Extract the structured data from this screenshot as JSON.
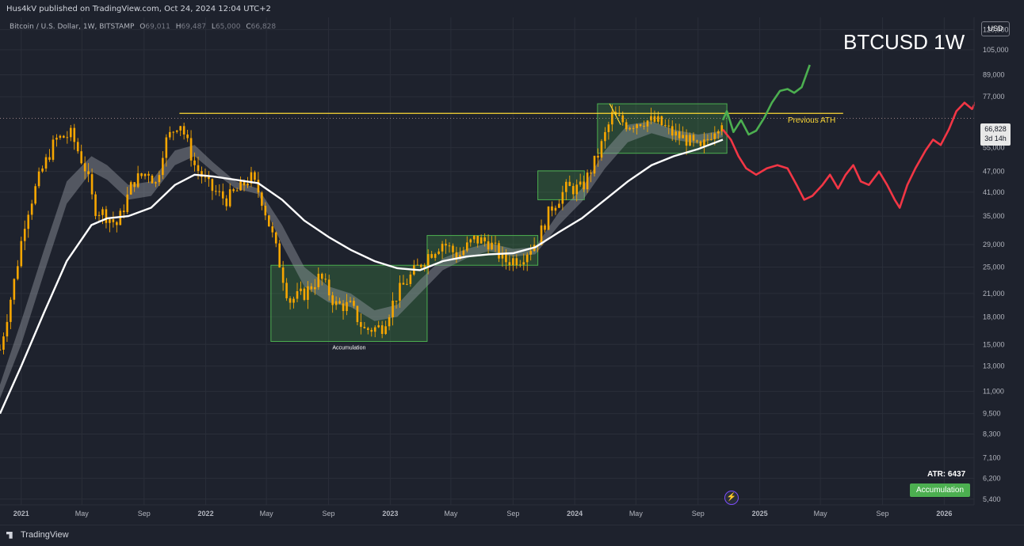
{
  "header": {
    "published_by": "Hus4kV published on TradingView.com, Oct 24, 2024 12:04 UTC+2"
  },
  "legend": {
    "symbol": "Bitcoin / U.S. Dollar, 1W, BITSTAMP",
    "open_label": "O",
    "open": "69,011",
    "high_label": "H",
    "high": "69,487",
    "low_label": "L",
    "low": "65,000",
    "close_label": "C",
    "close": "66,828"
  },
  "title": "BTCUSD 1W",
  "currency": "USD",
  "price_tag": {
    "price": "66,828",
    "countdown": "3d 14h"
  },
  "atr_text": "ATR: 6437",
  "badge": "Accumulation",
  "footer": {
    "logo": "TradingView"
  },
  "colors": {
    "background": "#1e222d",
    "candle": "#f7a600",
    "ma_white": "#ffffff",
    "band": "#9598a1",
    "box_fill": "#4caf50",
    "ath_line": "#fdd835",
    "bull_path": "#4caf50",
    "bear_path": "#f23645"
  },
  "chart_data": {
    "type": "line",
    "scale": "log",
    "ylim": [
      5200,
      130000
    ],
    "xlim": [
      "2020-11-20",
      "2026-03-01"
    ],
    "y_ticks": [
      "120,000",
      "105,000",
      "89,000",
      "77,000",
      "66,828",
      "55,000",
      "47,000",
      "41,000",
      "35,000",
      "29,000",
      "25,000",
      "21,000",
      "18,000",
      "15,000",
      "13,000",
      "11,000",
      "9,500",
      "8,300",
      "7,100",
      "6,200",
      "5,400"
    ],
    "y_tick_values": [
      120000,
      105000,
      89000,
      77000,
      66828,
      55000,
      47000,
      41000,
      35000,
      29000,
      25000,
      21000,
      18000,
      15000,
      13000,
      11000,
      9500,
      8300,
      7100,
      6200,
      5400
    ],
    "x_ticks": [
      {
        "label": "2021",
        "date": "2021-01-01"
      },
      {
        "label": "May",
        "date": "2021-05-01"
      },
      {
        "label": "Sep",
        "date": "2021-09-01"
      },
      {
        "label": "2022",
        "date": "2022-01-01"
      },
      {
        "label": "May",
        "date": "2022-05-01"
      },
      {
        "label": "Sep",
        "date": "2022-09-01"
      },
      {
        "label": "2023",
        "date": "2023-01-01"
      },
      {
        "label": "May",
        "date": "2023-05-01"
      },
      {
        "label": "Sep",
        "date": "2023-09-01"
      },
      {
        "label": "2024",
        "date": "2024-01-01"
      },
      {
        "label": "May",
        "date": "2024-05-01"
      },
      {
        "label": "Sep",
        "date": "2024-09-01"
      },
      {
        "label": "2025",
        "date": "2025-01-01"
      },
      {
        "label": "May",
        "date": "2025-05-01"
      },
      {
        "label": "Sep",
        "date": "2025-09-01"
      },
      {
        "label": "2026",
        "date": "2026-01-01"
      }
    ],
    "price_weekly_close": [
      [
        "2020-11-20",
        14500
      ],
      [
        "2020-12-20",
        23500
      ],
      [
        "2021-01-10",
        35000
      ],
      [
        "2021-02-10",
        47000
      ],
      [
        "2021-03-10",
        58000
      ],
      [
        "2021-04-10",
        60000
      ],
      [
        "2021-05-10",
        47000
      ],
      [
        "2021-05-25",
        37000
      ],
      [
        "2021-06-15",
        35500
      ],
      [
        "2021-07-10",
        33000
      ],
      [
        "2021-08-10",
        44000
      ],
      [
        "2021-09-10",
        47000
      ],
      [
        "2021-09-25",
        43000
      ],
      [
        "2021-10-10",
        56000
      ],
      [
        "2021-11-10",
        66000
      ],
      [
        "2021-12-10",
        49000
      ],
      [
        "2022-01-10",
        42000
      ],
      [
        "2022-02-10",
        39000
      ],
      [
        "2022-03-10",
        42000
      ],
      [
        "2022-03-30",
        45500
      ],
      [
        "2022-04-20",
        40000
      ],
      [
        "2022-05-15",
        30000
      ],
      [
        "2022-06-15",
        20000
      ],
      [
        "2022-07-15",
        21000
      ],
      [
        "2022-08-15",
        23500
      ],
      [
        "2022-09-15",
        19500
      ],
      [
        "2022-10-15",
        19300
      ],
      [
        "2022-11-10",
        16500
      ],
      [
        "2022-12-15",
        16800
      ],
      [
        "2023-01-15",
        21000
      ],
      [
        "2023-02-15",
        24000
      ],
      [
        "2023-03-15",
        27000
      ],
      [
        "2023-04-15",
        29500
      ],
      [
        "2023-05-15",
        26800
      ],
      [
        "2023-06-15",
        30000
      ],
      [
        "2023-07-15",
        29500
      ],
      [
        "2023-08-15",
        26000
      ],
      [
        "2023-09-15",
        26500
      ],
      [
        "2023-10-20",
        30000
      ],
      [
        "2023-11-15",
        37000
      ],
      [
        "2023-12-15",
        42000
      ],
      [
        "2024-01-15",
        42000
      ],
      [
        "2024-02-15",
        52000
      ],
      [
        "2024-03-15",
        68000
      ],
      [
        "2024-04-15",
        64000
      ],
      [
        "2024-05-15",
        66000
      ],
      [
        "2024-06-15",
        65000
      ],
      [
        "2024-07-15",
        60000
      ],
      [
        "2024-08-10",
        58000
      ],
      [
        "2024-09-06",
        54000
      ],
      [
        "2024-10-01",
        62000
      ],
      [
        "2024-10-20",
        66828
      ]
    ],
    "ma_long": [
      [
        "2020-11-20",
        9500
      ],
      [
        "2021-01-01",
        13000
      ],
      [
        "2021-02-15",
        18500
      ],
      [
        "2021-04-01",
        26000
      ],
      [
        "2021-05-20",
        33000
      ],
      [
        "2021-06-20",
        34500
      ],
      [
        "2021-08-01",
        35000
      ],
      [
        "2021-09-15",
        37000
      ],
      [
        "2021-11-01",
        43000
      ],
      [
        "2021-12-10",
        46000
      ],
      [
        "2022-01-15",
        45500
      ],
      [
        "2022-03-01",
        44500
      ],
      [
        "2022-04-15",
        43500
      ],
      [
        "2022-06-01",
        39000
      ],
      [
        "2022-07-15",
        34000
      ],
      [
        "2022-09-01",
        30500
      ],
      [
        "2022-10-15",
        28000
      ],
      [
        "2022-12-01",
        26000
      ],
      [
        "2023-01-15",
        24800
      ],
      [
        "2023-03-01",
        24500
      ],
      [
        "2023-04-15",
        26000
      ],
      [
        "2023-06-01",
        26800
      ],
      [
        "2023-07-15",
        27200
      ],
      [
        "2023-09-01",
        27400
      ],
      [
        "2023-10-15",
        28500
      ],
      [
        "2023-12-01",
        31500
      ],
      [
        "2024-01-15",
        34500
      ],
      [
        "2024-03-01",
        39000
      ],
      [
        "2024-04-15",
        44000
      ],
      [
        "2024-06-01",
        49000
      ],
      [
        "2024-07-15",
        52000
      ],
      [
        "2024-09-01",
        54500
      ],
      [
        "2024-10-20",
        58000
      ]
    ],
    "band_upper": [
      [
        "2020-11-20",
        11500
      ],
      [
        "2021-01-01",
        17500
      ],
      [
        "2021-02-15",
        28000
      ],
      [
        "2021-04-01",
        44000
      ],
      [
        "2021-05-20",
        52000
      ],
      [
        "2021-06-20",
        49000
      ],
      [
        "2021-08-01",
        43000
      ],
      [
        "2021-09-15",
        44000
      ],
      [
        "2021-11-01",
        54000
      ],
      [
        "2021-12-10",
        56000
      ],
      [
        "2022-01-15",
        50000
      ],
      [
        "2022-03-01",
        44000
      ],
      [
        "2022-04-15",
        42000
      ],
      [
        "2022-06-01",
        33000
      ],
      [
        "2022-07-15",
        25000
      ],
      [
        "2022-09-01",
        22000
      ],
      [
        "2022-10-15",
        21000
      ],
      [
        "2022-12-01",
        18800
      ],
      [
        "2023-01-15",
        19500
      ],
      [
        "2023-03-01",
        23000
      ],
      [
        "2023-04-15",
        26500
      ],
      [
        "2023-06-01",
        28200
      ],
      [
        "2023-07-15",
        29300
      ],
      [
        "2023-09-01",
        28200
      ],
      [
        "2023-10-15",
        28500
      ],
      [
        "2023-12-01",
        36000
      ],
      [
        "2024-01-15",
        42000
      ],
      [
        "2024-03-01",
        54000
      ],
      [
        "2024-04-15",
        64000
      ],
      [
        "2024-06-01",
        65500
      ],
      [
        "2024-07-15",
        62000
      ],
      [
        "2024-09-01",
        60000
      ],
      [
        "2024-10-20",
        61500
      ]
    ],
    "band_lower": [
      [
        "2020-11-20",
        10500
      ],
      [
        "2021-01-01",
        15000
      ],
      [
        "2021-02-15",
        24000
      ],
      [
        "2021-04-01",
        38000
      ],
      [
        "2021-05-20",
        47000
      ],
      [
        "2021-06-20",
        44500
      ],
      [
        "2021-08-01",
        39000
      ],
      [
        "2021-09-15",
        40000
      ],
      [
        "2021-11-01",
        49000
      ],
      [
        "2021-12-10",
        52000
      ],
      [
        "2022-01-15",
        47000
      ],
      [
        "2022-03-01",
        42000
      ],
      [
        "2022-04-15",
        40500
      ],
      [
        "2022-06-01",
        29000
      ],
      [
        "2022-07-15",
        22000
      ],
      [
        "2022-09-01",
        19800
      ],
      [
        "2022-10-15",
        19200
      ],
      [
        "2022-12-01",
        17500
      ],
      [
        "2023-01-15",
        18000
      ],
      [
        "2023-03-01",
        21000
      ],
      [
        "2023-04-15",
        24500
      ],
      [
        "2023-06-01",
        26500
      ],
      [
        "2023-07-15",
        27800
      ],
      [
        "2023-09-01",
        26800
      ],
      [
        "2023-10-15",
        27200
      ],
      [
        "2023-12-01",
        33000
      ],
      [
        "2024-01-15",
        38500
      ],
      [
        "2024-03-01",
        48000
      ],
      [
        "2024-04-15",
        57000
      ],
      [
        "2024-06-01",
        60500
      ],
      [
        "2024-07-15",
        58000
      ],
      [
        "2024-09-01",
        56500
      ],
      [
        "2024-10-20",
        59000
      ]
    ],
    "boxes": [
      {
        "x0": "2022-05-10",
        "x1": "2023-03-15",
        "y0": 15300,
        "y1": 25300,
        "label": "Accumulation"
      },
      {
        "x0": "2023-03-15",
        "x1": "2023-10-20",
        "y0": 25300,
        "y1": 30800,
        "label": ""
      },
      {
        "x0": "2023-10-20",
        "x1": "2024-01-20",
        "y0": 39000,
        "y1": 47200,
        "label": ""
      },
      {
        "x0": "2024-02-15",
        "x1": "2024-10-28",
        "y0": 53000,
        "y1": 73500,
        "label": ""
      }
    ],
    "ath_line": {
      "x0": "2021-11-10",
      "x1": "2025-06-15",
      "y": 69000,
      "label": "Previous ATH"
    },
    "small_trendline": [
      [
        "2024-03-10",
        73500
      ],
      [
        "2024-04-01",
        64000
      ]
    ],
    "bull_path": [
      [
        "2024-10-20",
        66000
      ],
      [
        "2024-10-28",
        70000
      ],
      [
        "2024-11-10",
        61000
      ],
      [
        "2024-11-25",
        66000
      ],
      [
        "2024-12-10",
        60000
      ],
      [
        "2024-12-25",
        61500
      ],
      [
        "2025-01-10",
        67000
      ],
      [
        "2025-01-25",
        74000
      ],
      [
        "2025-02-10",
        80000
      ],
      [
        "2025-02-25",
        81000
      ],
      [
        "2025-03-10",
        79000
      ],
      [
        "2025-03-25",
        82000
      ],
      [
        "2025-04-10",
        95000
      ]
    ],
    "bear_path": [
      [
        "2024-10-20",
        62000
      ],
      [
        "2024-11-05",
        58000
      ],
      [
        "2024-11-20",
        52000
      ],
      [
        "2024-12-05",
        48000
      ],
      [
        "2024-12-25",
        46000
      ],
      [
        "2025-01-15",
        48000
      ],
      [
        "2025-02-05",
        49000
      ],
      [
        "2025-02-25",
        48000
      ],
      [
        "2025-03-15",
        43000
      ],
      [
        "2025-03-30",
        39000
      ],
      [
        "2025-04-15",
        40000
      ],
      [
        "2025-05-05",
        43000
      ],
      [
        "2025-05-20",
        46000
      ],
      [
        "2025-06-05",
        42000
      ],
      [
        "2025-06-20",
        46000
      ],
      [
        "2025-07-05",
        49000
      ],
      [
        "2025-07-20",
        44000
      ],
      [
        "2025-08-05",
        43000
      ],
      [
        "2025-08-25",
        47000
      ],
      [
        "2025-09-10",
        43000
      ],
      [
        "2025-09-25",
        39000
      ],
      [
        "2025-10-05",
        37000
      ],
      [
        "2025-10-20",
        43000
      ],
      [
        "2025-11-05",
        48000
      ],
      [
        "2025-11-25",
        54000
      ],
      [
        "2025-12-10",
        58000
      ],
      [
        "2025-12-25",
        56000
      ],
      [
        "2026-01-10",
        62000
      ],
      [
        "2026-01-25",
        70000
      ],
      [
        "2026-02-10",
        74000
      ],
      [
        "2026-02-25",
        71000
      ],
      [
        "2026-03-10",
        77000
      ],
      [
        "2026-03-25",
        85000
      ],
      [
        "2026-04-05",
        90000
      ]
    ]
  }
}
